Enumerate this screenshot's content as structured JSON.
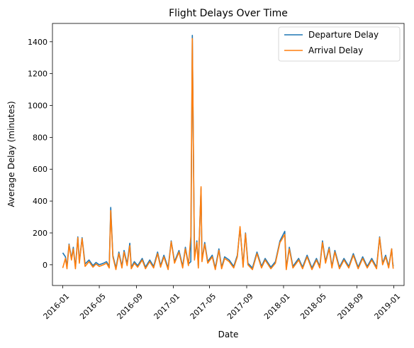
{
  "chart_data": {
    "type": "line",
    "title": "Flight Delays Over Time",
    "xlabel": "Date",
    "ylabel": "Average Delay (minutes)",
    "xlim": [
      "2015-11-28",
      "2019-02-04"
    ],
    "ylim": [
      -130,
      1515
    ],
    "x_ticks": [
      "2016-01",
      "2016-05",
      "2016-09",
      "2017-01",
      "2017-05",
      "2017-09",
      "2018-01",
      "2018-05",
      "2018-09",
      "2019-01"
    ],
    "y_ticks": [
      0,
      200,
      400,
      600,
      800,
      1000,
      1200,
      1400
    ],
    "grid": false,
    "legend": "top-right",
    "series": [
      {
        "name": "Departure Delay",
        "color": "#1f77b4",
        "points": [
          [
            "2016-01-01",
            75
          ],
          [
            "2016-01-10",
            50
          ],
          [
            "2016-01-15",
            -10
          ],
          [
            "2016-01-22",
            130
          ],
          [
            "2016-01-30",
            40
          ],
          [
            "2016-02-05",
            110
          ],
          [
            "2016-02-12",
            -15
          ],
          [
            "2016-02-20",
            175
          ],
          [
            "2016-02-25",
            20
          ],
          [
            "2016-03-05",
            170
          ],
          [
            "2016-03-15",
            5
          ],
          [
            "2016-03-28",
            30
          ],
          [
            "2016-04-10",
            -5
          ],
          [
            "2016-04-20",
            15
          ],
          [
            "2016-05-01",
            0
          ],
          [
            "2016-05-15",
            10
          ],
          [
            "2016-05-25",
            20
          ],
          [
            "2016-06-03",
            -10
          ],
          [
            "2016-06-08",
            360
          ],
          [
            "2016-06-15",
            60
          ],
          [
            "2016-06-25",
            -20
          ],
          [
            "2016-07-05",
            80
          ],
          [
            "2016-07-15",
            -10
          ],
          [
            "2016-07-22",
            90
          ],
          [
            "2016-08-01",
            5
          ],
          [
            "2016-08-10",
            135
          ],
          [
            "2016-08-15",
            -15
          ],
          [
            "2016-08-25",
            20
          ],
          [
            "2016-09-05",
            -5
          ],
          [
            "2016-09-20",
            40
          ],
          [
            "2016-10-01",
            -15
          ],
          [
            "2016-10-15",
            30
          ],
          [
            "2016-10-28",
            -10
          ],
          [
            "2016-11-10",
            80
          ],
          [
            "2016-11-20",
            -5
          ],
          [
            "2016-12-01",
            60
          ],
          [
            "2016-12-15",
            -20
          ],
          [
            "2016-12-25",
            150
          ],
          [
            "2017-01-05",
            20
          ],
          [
            "2017-01-20",
            90
          ],
          [
            "2017-02-01",
            -10
          ],
          [
            "2017-02-10",
            110
          ],
          [
            "2017-02-20",
            5
          ],
          [
            "2017-02-28",
            20
          ],
          [
            "2017-03-05",
            1440
          ],
          [
            "2017-03-12",
            40
          ],
          [
            "2017-03-20",
            150
          ],
          [
            "2017-03-25",
            -10
          ],
          [
            "2017-04-03",
            480
          ],
          [
            "2017-04-06",
            30
          ],
          [
            "2017-04-15",
            140
          ],
          [
            "2017-04-25",
            20
          ],
          [
            "2017-05-10",
            60
          ],
          [
            "2017-05-20",
            -20
          ],
          [
            "2017-06-01",
            100
          ],
          [
            "2017-06-10",
            -15
          ],
          [
            "2017-06-20",
            50
          ],
          [
            "2017-07-05",
            30
          ],
          [
            "2017-07-20",
            -10
          ],
          [
            "2017-08-01",
            60
          ],
          [
            "2017-08-10",
            230
          ],
          [
            "2017-08-20",
            -5
          ],
          [
            "2017-08-28",
            200
          ],
          [
            "2017-09-05",
            10
          ],
          [
            "2017-09-20",
            -20
          ],
          [
            "2017-10-05",
            80
          ],
          [
            "2017-10-20",
            -10
          ],
          [
            "2017-11-01",
            40
          ],
          [
            "2017-11-20",
            -15
          ],
          [
            "2017-12-05",
            20
          ],
          [
            "2017-12-20",
            150
          ],
          [
            "2018-01-05",
            210
          ],
          [
            "2018-01-10",
            -20
          ],
          [
            "2018-01-20",
            110
          ],
          [
            "2018-02-01",
            -10
          ],
          [
            "2018-02-20",
            40
          ],
          [
            "2018-03-05",
            -15
          ],
          [
            "2018-03-20",
            60
          ],
          [
            "2018-04-05",
            -20
          ],
          [
            "2018-04-20",
            40
          ],
          [
            "2018-05-01",
            -10
          ],
          [
            "2018-05-10",
            150
          ],
          [
            "2018-05-20",
            20
          ],
          [
            "2018-06-01",
            110
          ],
          [
            "2018-06-10",
            -10
          ],
          [
            "2018-06-20",
            90
          ],
          [
            "2018-07-05",
            -15
          ],
          [
            "2018-07-20",
            40
          ],
          [
            "2018-08-05",
            -10
          ],
          [
            "2018-08-20",
            70
          ],
          [
            "2018-09-05",
            -15
          ],
          [
            "2018-09-20",
            50
          ],
          [
            "2018-10-05",
            -10
          ],
          [
            "2018-10-20",
            40
          ],
          [
            "2018-11-05",
            -15
          ],
          [
            "2018-11-15",
            175
          ],
          [
            "2018-11-25",
            10
          ],
          [
            "2018-12-05",
            60
          ],
          [
            "2018-12-15",
            -10
          ],
          [
            "2018-12-25",
            100
          ],
          [
            "2018-12-28",
            20
          ],
          [
            "2018-12-30",
            -10
          ]
        ]
      },
      {
        "name": "Arrival Delay",
        "color": "#ff7f0e",
        "points": [
          [
            "2016-01-01",
            -20
          ],
          [
            "2016-01-10",
            40
          ],
          [
            "2016-01-15",
            -25
          ],
          [
            "2016-01-22",
            125
          ],
          [
            "2016-01-30",
            30
          ],
          [
            "2016-02-05",
            100
          ],
          [
            "2016-02-12",
            -25
          ],
          [
            "2016-02-20",
            170
          ],
          [
            "2016-02-25",
            10
          ],
          [
            "2016-03-05",
            165
          ],
          [
            "2016-03-15",
            -10
          ],
          [
            "2016-03-28",
            20
          ],
          [
            "2016-04-10",
            -15
          ],
          [
            "2016-04-20",
            5
          ],
          [
            "2016-05-01",
            -10
          ],
          [
            "2016-05-15",
            0
          ],
          [
            "2016-05-25",
            10
          ],
          [
            "2016-06-03",
            -20
          ],
          [
            "2016-06-08",
            340
          ],
          [
            "2016-06-15",
            50
          ],
          [
            "2016-06-25",
            -30
          ],
          [
            "2016-07-05",
            70
          ],
          [
            "2016-07-15",
            -20
          ],
          [
            "2016-07-22",
            80
          ],
          [
            "2016-08-01",
            -5
          ],
          [
            "2016-08-10",
            120
          ],
          [
            "2016-08-15",
            -25
          ],
          [
            "2016-08-25",
            10
          ],
          [
            "2016-09-05",
            -15
          ],
          [
            "2016-09-20",
            30
          ],
          [
            "2016-10-01",
            -25
          ],
          [
            "2016-10-15",
            20
          ],
          [
            "2016-10-28",
            -20
          ],
          [
            "2016-11-10",
            70
          ],
          [
            "2016-11-20",
            -15
          ],
          [
            "2016-12-01",
            50
          ],
          [
            "2016-12-15",
            -30
          ],
          [
            "2016-12-25",
            145
          ],
          [
            "2017-01-05",
            10
          ],
          [
            "2017-01-20",
            80
          ],
          [
            "2017-02-01",
            -20
          ],
          [
            "2017-02-10",
            100
          ],
          [
            "2017-02-20",
            -5
          ],
          [
            "2017-02-28",
            180
          ],
          [
            "2017-03-05",
            1420
          ],
          [
            "2017-03-12",
            30
          ],
          [
            "2017-03-20",
            140
          ],
          [
            "2017-03-25",
            -20
          ],
          [
            "2017-04-03",
            490
          ],
          [
            "2017-04-06",
            20
          ],
          [
            "2017-04-15",
            130
          ],
          [
            "2017-04-25",
            10
          ],
          [
            "2017-05-10",
            50
          ],
          [
            "2017-05-20",
            -30
          ],
          [
            "2017-06-01",
            90
          ],
          [
            "2017-06-10",
            -25
          ],
          [
            "2017-06-20",
            40
          ],
          [
            "2017-07-05",
            20
          ],
          [
            "2017-07-20",
            -20
          ],
          [
            "2017-08-01",
            50
          ],
          [
            "2017-08-10",
            240
          ],
          [
            "2017-08-20",
            -15
          ],
          [
            "2017-08-28",
            195
          ],
          [
            "2017-09-05",
            0
          ],
          [
            "2017-09-20",
            -30
          ],
          [
            "2017-10-05",
            70
          ],
          [
            "2017-10-20",
            -20
          ],
          [
            "2017-11-01",
            30
          ],
          [
            "2017-11-20",
            -25
          ],
          [
            "2017-12-05",
            10
          ],
          [
            "2017-12-20",
            140
          ],
          [
            "2018-01-05",
            190
          ],
          [
            "2018-01-10",
            -30
          ],
          [
            "2018-01-20",
            100
          ],
          [
            "2018-02-01",
            -20
          ],
          [
            "2018-02-20",
            30
          ],
          [
            "2018-03-05",
            -25
          ],
          [
            "2018-03-20",
            50
          ],
          [
            "2018-04-05",
            -30
          ],
          [
            "2018-04-20",
            30
          ],
          [
            "2018-05-01",
            -20
          ],
          [
            "2018-05-10",
            140
          ],
          [
            "2018-05-20",
            10
          ],
          [
            "2018-06-01",
            100
          ],
          [
            "2018-06-10",
            -20
          ],
          [
            "2018-06-20",
            80
          ],
          [
            "2018-07-05",
            -25
          ],
          [
            "2018-07-20",
            30
          ],
          [
            "2018-08-05",
            -20
          ],
          [
            "2018-08-20",
            60
          ],
          [
            "2018-09-05",
            -25
          ],
          [
            "2018-09-20",
            40
          ],
          [
            "2018-10-05",
            -20
          ],
          [
            "2018-10-20",
            30
          ],
          [
            "2018-11-05",
            -25
          ],
          [
            "2018-11-15",
            170
          ],
          [
            "2018-11-25",
            0
          ],
          [
            "2018-12-05",
            50
          ],
          [
            "2018-12-15",
            -20
          ],
          [
            "2018-12-25",
            100
          ],
          [
            "2018-12-28",
            10
          ],
          [
            "2018-12-30",
            -25
          ]
        ]
      }
    ]
  }
}
